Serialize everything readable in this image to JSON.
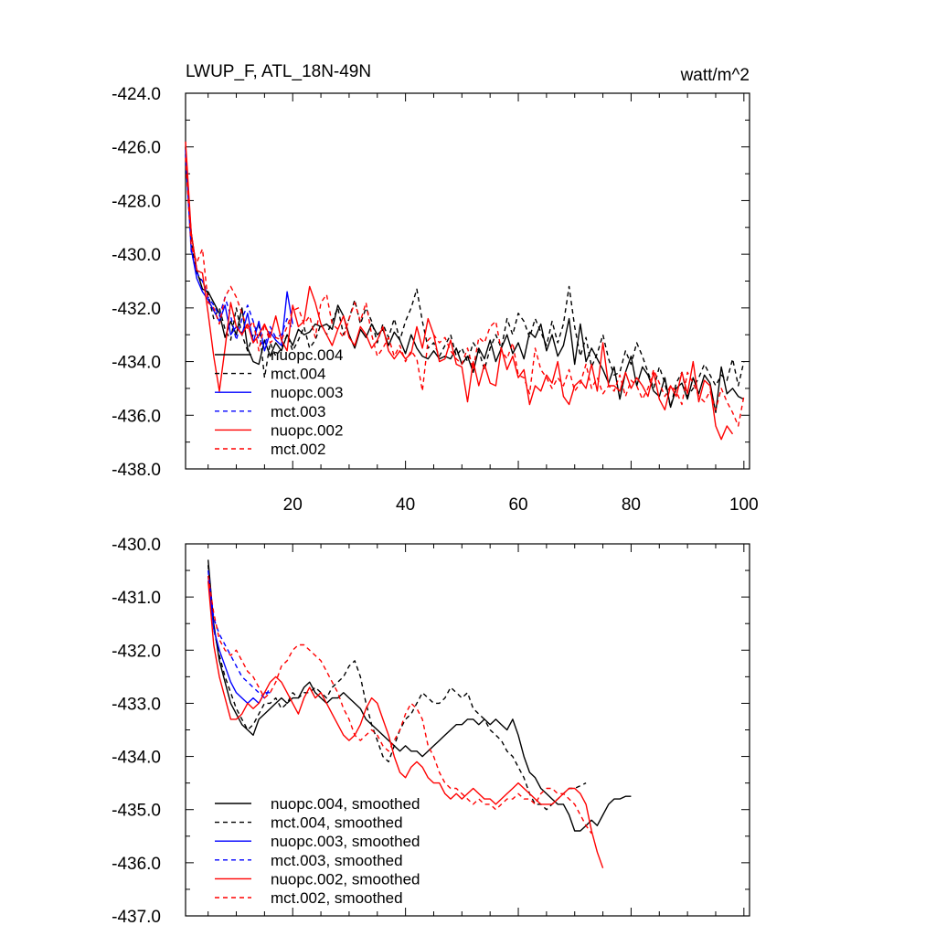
{
  "chart_data": [
    {
      "type": "line",
      "title": "LWUP_F, ATL_18N-49N",
      "units": "watt/m^2",
      "xlabel": "",
      "ylabel": "",
      "xlim": [
        1,
        101
      ],
      "ylim": [
        -438,
        -424
      ],
      "xticks": [
        20,
        40,
        60,
        80,
        100
      ],
      "yticks": [
        -424.0,
        -426.0,
        -428.0,
        -430.0,
        -432.0,
        -434.0,
        -436.0,
        -438.0
      ],
      "ytick_labels": [
        "-424.0",
        "-426.0",
        "-428.0",
        "-430.0",
        "-432.0",
        "-434.0",
        "-436.0",
        "-438.0"
      ],
      "legend_position": "lower-left",
      "series": [
        {
          "name": "nuopc.004",
          "color": "#000000",
          "dash": "solid",
          "x0": 1,
          "values": [
            -426.5,
            -429.2,
            -430.6,
            -431.3,
            -431.4,
            -431.8,
            -432.2,
            -433.1,
            -432.5,
            -433.0,
            -432.0,
            -433.5,
            -434.0,
            -434.1,
            -433.2,
            -433.8,
            -433.3,
            -433.6,
            -433.0,
            -433.4,
            -432.8,
            -433.0,
            -432.9,
            -432.6,
            -432.7,
            -432.6,
            -432.8,
            -431.9,
            -432.3,
            -433.0,
            -433.5,
            -432.8,
            -433.1,
            -432.6,
            -433.0,
            -432.8,
            -433.4,
            -432.9,
            -433.2,
            -433.7,
            -433.0,
            -433.5,
            -433.8,
            -433.9,
            -433.6,
            -433.9,
            -433.8,
            -433.9,
            -433.5,
            -434.1,
            -433.8,
            -434.4,
            -433.5,
            -433.9,
            -433.2,
            -434.0,
            -433.5,
            -433.0,
            -433.7,
            -433.3,
            -433.9,
            -432.9,
            -433.1,
            -432.6,
            -433.6,
            -433.0,
            -433.8,
            -433.4,
            -432.4,
            -434.1,
            -432.6,
            -434.0,
            -433.5,
            -433.9,
            -434.3,
            -434.8,
            -434.2,
            -435.4,
            -434.4,
            -433.8,
            -434.9,
            -434.2,
            -434.5,
            -435.1,
            -435.3,
            -434.6,
            -435.7,
            -435.0,
            -434.8,
            -435.4,
            -434.6,
            -435.2,
            -434.5,
            -434.8,
            -435.9,
            -434.2,
            -435.2,
            -435.0,
            -435.3,
            -435.4
          ]
        },
        {
          "name": "mct.004",
          "color": "#000000",
          "dash": "dashed",
          "x0": 1,
          "values": [
            -426.0,
            -429.5,
            -430.8,
            -431.0,
            -431.5,
            -432.4,
            -432.0,
            -432.8,
            -433.2,
            -432.0,
            -433.0,
            -433.6,
            -433.0,
            -432.6,
            -434.6,
            -433.3,
            -433.8,
            -433.5,
            -433.0,
            -433.6,
            -433.2,
            -432.7,
            -433.5,
            -433.2,
            -432.6,
            -433.0,
            -432.5,
            -432.0,
            -433.0,
            -432.4,
            -431.7,
            -432.6,
            -432.0,
            -432.5,
            -433.3,
            -432.6,
            -433.1,
            -432.4,
            -433.2,
            -432.5,
            -432.0,
            -431.3,
            -432.5,
            -433.5,
            -433.3,
            -433.8,
            -433.4,
            -433.0,
            -433.8,
            -433.5,
            -434.0,
            -433.3,
            -433.6,
            -434.3,
            -433.5,
            -433.0,
            -433.5,
            -432.4,
            -433.0,
            -432.2,
            -432.5,
            -433.1,
            -432.4,
            -432.9,
            -433.4,
            -432.5,
            -433.3,
            -432.6,
            -431.2,
            -432.7,
            -433.8,
            -433.1,
            -434.2,
            -433.7,
            -433.0,
            -433.9,
            -434.5,
            -434.4,
            -433.6,
            -434.1,
            -433.3,
            -433.8,
            -434.4,
            -435.0,
            -434.2,
            -434.8,
            -435.7,
            -434.8,
            -434.4,
            -435.3,
            -435.0,
            -434.6,
            -434.1,
            -434.5,
            -434.9,
            -434.5,
            -434.7,
            -433.9,
            -434.9,
            -434.0
          ]
        },
        {
          "name": "nuopc.003",
          "color": "#0000ff",
          "dash": "solid",
          "x0": 1,
          "values": [
            -426.3,
            -429.8,
            -430.9,
            -431.4,
            -431.7,
            -432.1,
            -432.5,
            -431.9,
            -433.0,
            -432.7,
            -433.0,
            -432.2,
            -433.3,
            -432.5,
            -433.6,
            -432.9,
            -433.2,
            -433.4,
            -431.4,
            -432.6
          ]
        },
        {
          "name": "mct.003",
          "color": "#0000ff",
          "dash": "dashed",
          "x0": 1,
          "values": [
            -426.1,
            -429.9,
            -430.7,
            -431.0,
            -431.6,
            -431.9,
            -432.3,
            -431.6,
            -432.3,
            -433.2,
            -432.4,
            -431.9,
            -432.5,
            -433.2,
            -433.4,
            -432.7,
            -433.1,
            -433.0,
            -432.4,
            -432.8
          ]
        },
        {
          "name": "nuopc.002",
          "color": "#ff0000",
          "dash": "solid",
          "x0": 1,
          "values": [
            -425.8,
            -429.2,
            -430.6,
            -430.7,
            -432.2,
            -433.8,
            -435.1,
            -433.5,
            -431.8,
            -432.7,
            -433.0,
            -432.6,
            -433.3,
            -433.0,
            -432.6,
            -433.1,
            -432.3,
            -433.2,
            -433.6,
            -431.9,
            -432.7,
            -432.5,
            -431.2,
            -431.8,
            -432.6,
            -433.0,
            -433.4,
            -432.8,
            -432.3,
            -433.1,
            -433.4,
            -432.7,
            -433.0,
            -433.5,
            -433.2,
            -432.7,
            -433.6,
            -433.9,
            -433.6,
            -433.9,
            -433.7,
            -432.7,
            -433.5,
            -432.4,
            -433.0,
            -434.0,
            -433.9,
            -433.2,
            -434.1,
            -434.2,
            -435.5,
            -434.0,
            -434.9,
            -434.1,
            -434.8,
            -434.9,
            -433.5,
            -434.3,
            -433.8,
            -434.6,
            -434.3,
            -435.6,
            -434.9,
            -435.1,
            -434.5,
            -434.8,
            -434.0,
            -435.3,
            -435.6,
            -434.9,
            -434.7,
            -435.0,
            -434.1,
            -435.1,
            -433.3,
            -434.9,
            -434.9,
            -435.1,
            -434.4,
            -435.0,
            -434.6,
            -434.9,
            -435.3,
            -434.4,
            -435.4,
            -435.8,
            -434.9,
            -435.3,
            -434.4,
            -435.2,
            -434.0,
            -435.5,
            -434.7,
            -434.9,
            -436.4,
            -436.9,
            -436.4,
            -436.7
          ]
        },
        {
          "name": "mct.002",
          "color": "#ff0000",
          "dash": "dashed",
          "x0": 1,
          "values": [
            -426.4,
            -429.7,
            -430.3,
            -429.8,
            -431.8,
            -432.0,
            -432.6,
            -431.6,
            -431.2,
            -431.6,
            -432.2,
            -432.8,
            -432.5,
            -433.6,
            -432.6,
            -433.3,
            -433.1,
            -433.2,
            -432.7,
            -432.1,
            -432.0,
            -432.6,
            -432.3,
            -433.1,
            -431.8,
            -431.5,
            -432.6,
            -432.8,
            -433.1,
            -432.4,
            -431.8,
            -432.5,
            -431.8,
            -433.0,
            -433.8,
            -433.5,
            -433.1,
            -433.8,
            -433.4,
            -434.0,
            -433.6,
            -433.9,
            -435.1,
            -433.2,
            -433.0,
            -433.3,
            -433.1,
            -433.6,
            -433.9,
            -434.1,
            -433.5,
            -434.3,
            -433.1,
            -433.3,
            -432.7,
            -432.5,
            -433.6,
            -433.9,
            -433.3,
            -434.5,
            -434.6,
            -435.2,
            -433.5,
            -434.3,
            -434.6,
            -435.0,
            -434.6,
            -434.9,
            -434.3,
            -435.1,
            -434.8,
            -434.1,
            -435.0,
            -434.6,
            -435.2,
            -434.9,
            -435.1,
            -434.5,
            -435.3,
            -434.7,
            -434.9,
            -435.4,
            -435.0,
            -434.3,
            -434.8,
            -435.3,
            -434.9,
            -435.1,
            -435.6,
            -434.4,
            -434.8,
            -435.3,
            -435.5,
            -435.1,
            -435.8,
            -435.0,
            -435.5,
            -435.9,
            -436.4,
            -435.3
          ]
        }
      ]
    },
    {
      "type": "line",
      "title": "",
      "xlabel": "",
      "ylabel": "",
      "xlim": [
        1,
        101
      ],
      "ylim": [
        -437,
        -430
      ],
      "xticks": [
        20,
        40,
        60,
        80,
        100
      ],
      "yticks": [
        -430.0,
        -431.0,
        -432.0,
        -433.0,
        -434.0,
        -435.0,
        -436.0,
        -437.0
      ],
      "ytick_labels": [
        "-430.0",
        "-431.0",
        "-432.0",
        "-433.0",
        "-434.0",
        "-435.0",
        "-436.0",
        "-437.0"
      ],
      "legend_position": "lower-left",
      "series": [
        {
          "name": "nuopc.004, smoothed",
          "color": "#000000",
          "dash": "solid",
          "x0": 5,
          "values": [
            -430.3,
            -431.5,
            -432.2,
            -432.6,
            -433.0,
            -433.2,
            -433.4,
            -433.5,
            -433.6,
            -433.3,
            -433.2,
            -433.1,
            -433.0,
            -432.9,
            -433.0,
            -432.9,
            -432.9,
            -432.7,
            -432.6,
            -432.8,
            -432.9,
            -433.0,
            -432.9,
            -432.9,
            -432.8,
            -432.9,
            -433.0,
            -433.1,
            -433.3,
            -433.4,
            -433.5,
            -433.6,
            -433.7,
            -433.8,
            -433.9,
            -433.8,
            -433.9,
            -433.9,
            -434.0,
            -433.9,
            -433.8,
            -433.7,
            -433.6,
            -433.5,
            -433.4,
            -433.4,
            -433.3,
            -433.3,
            -433.4,
            -433.3,
            -433.4,
            -433.3,
            -433.4,
            -433.5,
            -433.3,
            -433.6,
            -434.0,
            -434.3,
            -434.4,
            -434.6,
            -434.7,
            -434.8,
            -434.9,
            -434.9,
            -435.1,
            -435.4,
            -435.4,
            -435.3,
            -435.2,
            -435.3,
            -435.1,
            -434.9,
            -434.8,
            -434.8,
            -434.75,
            -434.75
          ]
        },
        {
          "name": "mct.004, smoothed",
          "color": "#000000",
          "dash": "dashed",
          "x0": 5,
          "values": [
            -430.4,
            -431.6,
            -432.1,
            -432.5,
            -432.8,
            -433.1,
            -433.3,
            -433.5,
            -433.4,
            -433.2,
            -433.0,
            -433.0,
            -432.9,
            -433.1,
            -433.0,
            -432.8,
            -432.9,
            -432.8,
            -432.8,
            -432.7,
            -432.8,
            -432.9,
            -432.7,
            -432.6,
            -432.5,
            -432.3,
            -432.2,
            -432.5,
            -433.0,
            -433.4,
            -433.7,
            -434.0,
            -434.1,
            -433.8,
            -433.5,
            -433.3,
            -433.2,
            -433.0,
            -432.8,
            -432.9,
            -433.0,
            -433.0,
            -432.9,
            -432.7,
            -432.8,
            -432.9,
            -432.8,
            -433.1,
            -433.2,
            -433.3,
            -433.5,
            -433.6,
            -433.7,
            -433.9,
            -434.0,
            -434.2,
            -434.4,
            -434.7,
            -434.9,
            -434.9,
            -435.0,
            -434.9,
            -434.8,
            -434.7,
            -434.6,
            -434.6,
            -434.55,
            -434.5
          ]
        },
        {
          "name": "nuopc.003, smoothed",
          "color": "#0000ff",
          "dash": "solid",
          "x0": 5,
          "values": [
            -430.6,
            -431.6,
            -432.0,
            -432.3,
            -432.6,
            -432.8,
            -432.9,
            -433.0,
            -432.9,
            -433.0,
            -432.8,
            -432.8
          ]
        },
        {
          "name": "mct.003, smoothed",
          "color": "#0000ff",
          "dash": "dashed",
          "x0": 5,
          "values": [
            -430.5,
            -431.4,
            -431.7,
            -431.9,
            -432.1,
            -432.3,
            -432.5,
            -432.6,
            -432.7,
            -432.8,
            -432.9,
            -432.7
          ]
        },
        {
          "name": "nuopc.002, smoothed",
          "color": "#ff0000",
          "dash": "solid",
          "x0": 5,
          "values": [
            -430.7,
            -431.9,
            -432.5,
            -432.9,
            -433.3,
            -433.3,
            -433.2,
            -433.0,
            -433.1,
            -433.0,
            -432.8,
            -432.6,
            -432.5,
            -432.6,
            -432.8,
            -433.0,
            -433.2,
            -432.9,
            -432.7,
            -432.9,
            -432.8,
            -433.0,
            -433.2,
            -433.4,
            -433.6,
            -433.7,
            -433.6,
            -433.4,
            -433.1,
            -432.9,
            -433.0,
            -433.3,
            -433.6,
            -434.0,
            -434.3,
            -434.4,
            -434.2,
            -434.1,
            -434.2,
            -434.4,
            -434.5,
            -434.5,
            -434.7,
            -434.8,
            -434.7,
            -434.8,
            -434.7,
            -434.6,
            -434.7,
            -434.8,
            -434.8,
            -434.9,
            -434.8,
            -434.7,
            -434.6,
            -434.5,
            -434.6,
            -434.7,
            -434.8,
            -434.9,
            -434.9,
            -434.9,
            -434.8,
            -434.7,
            -434.6,
            -434.6,
            -434.7,
            -434.9,
            -435.4,
            -435.8,
            -436.1
          ]
        },
        {
          "name": "mct.002, smoothed",
          "color": "#ff0000",
          "dash": "dashed",
          "x0": 5,
          "values": [
            -430.6,
            -431.3,
            -431.8,
            -432.0,
            -432.1,
            -432.0,
            -432.2,
            -432.4,
            -432.5,
            -432.7,
            -432.9,
            -432.8,
            -432.6,
            -432.3,
            -432.2,
            -432.0,
            -431.9,
            -431.9,
            -432.0,
            -432.1,
            -432.2,
            -432.4,
            -432.6,
            -432.8,
            -433.1,
            -433.3,
            -433.6,
            -433.7,
            -433.6,
            -433.5,
            -433.6,
            -433.8,
            -433.9,
            -433.7,
            -433.5,
            -433.2,
            -433.0,
            -433.1,
            -433.3,
            -433.8,
            -434.0,
            -434.3,
            -434.5,
            -434.6,
            -434.6,
            -434.7,
            -434.8,
            -434.9,
            -434.8,
            -434.9,
            -434.9,
            -435.0,
            -434.9,
            -434.8,
            -434.8,
            -434.7,
            -434.8,
            -434.8,
            -434.9,
            -434.7,
            -434.6,
            -434.6,
            -434.7,
            -434.7,
            -434.8,
            -434.9,
            -435.1,
            -435.3,
            -435.45
          ]
        }
      ]
    }
  ]
}
